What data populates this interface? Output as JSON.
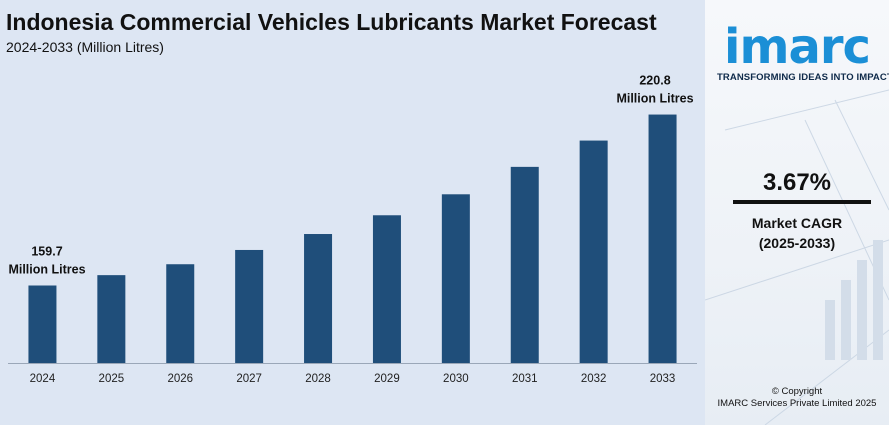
{
  "chart_data": {
    "type": "bar",
    "title": "Indonesia Commercial Vehicles Lubricants Market Forecast",
    "subtitle": "2024-2033 (Million Litres)",
    "categories": [
      "2024",
      "2025",
      "2026",
      "2027",
      "2028",
      "2029",
      "2030",
      "2031",
      "2032",
      "2033"
    ],
    "values": [
      159.7,
      163.4,
      167.3,
      172.4,
      178.1,
      184.8,
      192.3,
      202.1,
      211.5,
      220.8
    ],
    "ylim": [
      132,
      226
    ],
    "bar_color": "#1f4e7a",
    "annotations": [
      {
        "category": "2024",
        "lines": [
          "159.7",
          "Million Litres"
        ]
      },
      {
        "category": "2033",
        "lines": [
          "220.8",
          "Million Litres"
        ]
      }
    ],
    "grid": false
  },
  "brand": {
    "logo": "imarc",
    "tagline": "TRANSFORMING IDEAS INTO IMPACT",
    "logo_color": "#1b8fd6"
  },
  "cagr": {
    "value": "3.67%",
    "label": "Market CAGR",
    "period": "(2025-2033)"
  },
  "footer": {
    "copyright": "© Copyright",
    "company": "IMARC Services Private Limited 2025"
  }
}
